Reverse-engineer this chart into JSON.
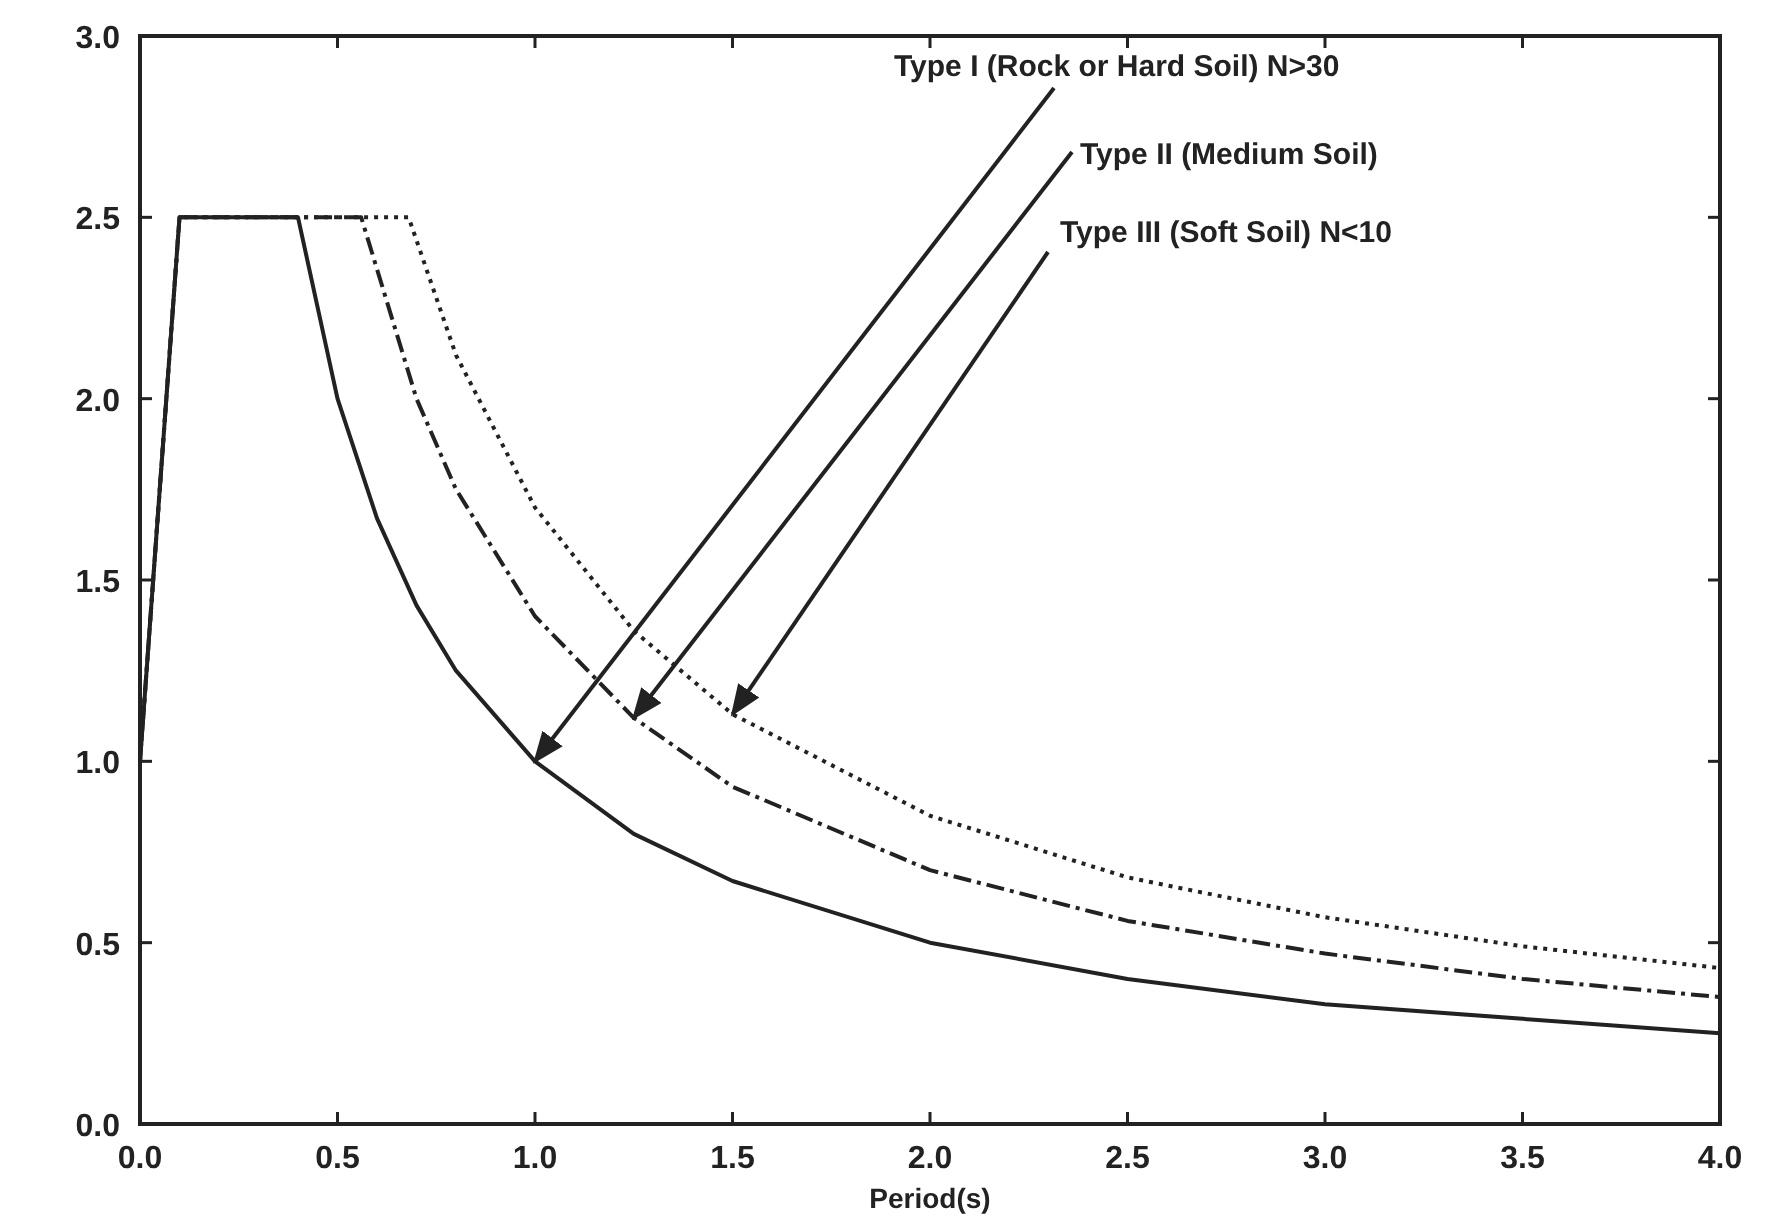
{
  "chart_data": {
    "type": "line",
    "xlabel": "Period(s)",
    "xlim": [
      0,
      4
    ],
    "ylim": [
      0,
      3
    ],
    "xticks": [
      {
        "value": 0,
        "label": "0.0"
      },
      {
        "value": 0.5,
        "label": "0.5"
      },
      {
        "value": 1,
        "label": "1.0"
      },
      {
        "value": 1.5,
        "label": "1.5"
      },
      {
        "value": 2,
        "label": "2.0"
      },
      {
        "value": 2.5,
        "label": "2.5"
      },
      {
        "value": 3,
        "label": "3.0"
      },
      {
        "value": 3.5,
        "label": "3.5"
      },
      {
        "value": 4,
        "label": "4.0"
      }
    ],
    "yticks": [
      {
        "value": 0,
        "label": "0.0"
      },
      {
        "value": 0.5,
        "label": "0.5"
      },
      {
        "value": 1,
        "label": "1.0"
      },
      {
        "value": 1.5,
        "label": "1.5"
      },
      {
        "value": 2,
        "label": "2.0"
      },
      {
        "value": 2.5,
        "label": "2.5"
      },
      {
        "value": 3,
        "label": "3.0"
      }
    ],
    "grid": false,
    "marker": "none",
    "series": [
      {
        "color": "#222222",
        "line_style": "solid",
        "x": [
          0,
          0.1,
          0.4,
          0.5,
          0.6,
          0.7,
          0.8,
          1.0,
          1.25,
          1.5,
          2.0,
          2.5,
          3.0,
          3.5,
          4.0
        ],
        "values": [
          1.0,
          2.5,
          2.5,
          2.0,
          1.67,
          1.43,
          1.25,
          1.0,
          0.8,
          0.67,
          0.5,
          0.4,
          0.33,
          0.29,
          0.25
        ]
      },
      {
        "color": "#222222",
        "line_style": "dashed",
        "x": [
          0,
          0.1,
          0.56,
          0.7,
          0.8,
          1.0,
          1.25,
          1.5,
          2.0,
          2.5,
          3.0,
          3.5,
          4.0
        ],
        "values": [
          1.0,
          2.5,
          2.5,
          2.0,
          1.75,
          1.4,
          1.12,
          0.93,
          0.7,
          0.56,
          0.47,
          0.4,
          0.35
        ]
      },
      {
        "color": "#222222",
        "line_style": "dotted",
        "x": [
          0,
          0.1,
          0.68,
          0.8,
          1.0,
          1.25,
          1.5,
          2.0,
          2.5,
          3.0,
          3.5,
          4.0
        ],
        "values": [
          1.0,
          2.5,
          2.5,
          2.12,
          1.7,
          1.36,
          1.13,
          0.85,
          0.68,
          0.57,
          0.49,
          0.43
        ]
      }
    ],
    "annotations": [
      {
        "text": "Type I (Rock or Hard Soil) N>30",
        "x": 1.0,
        "y": 1.0
      },
      {
        "text": "Type II (Medium Soil)",
        "x": 1.25,
        "y": 1.12
      },
      {
        "text": "Type III (Soft Soil) N<10",
        "x": 1.5,
        "y": 1.13
      }
    ]
  }
}
